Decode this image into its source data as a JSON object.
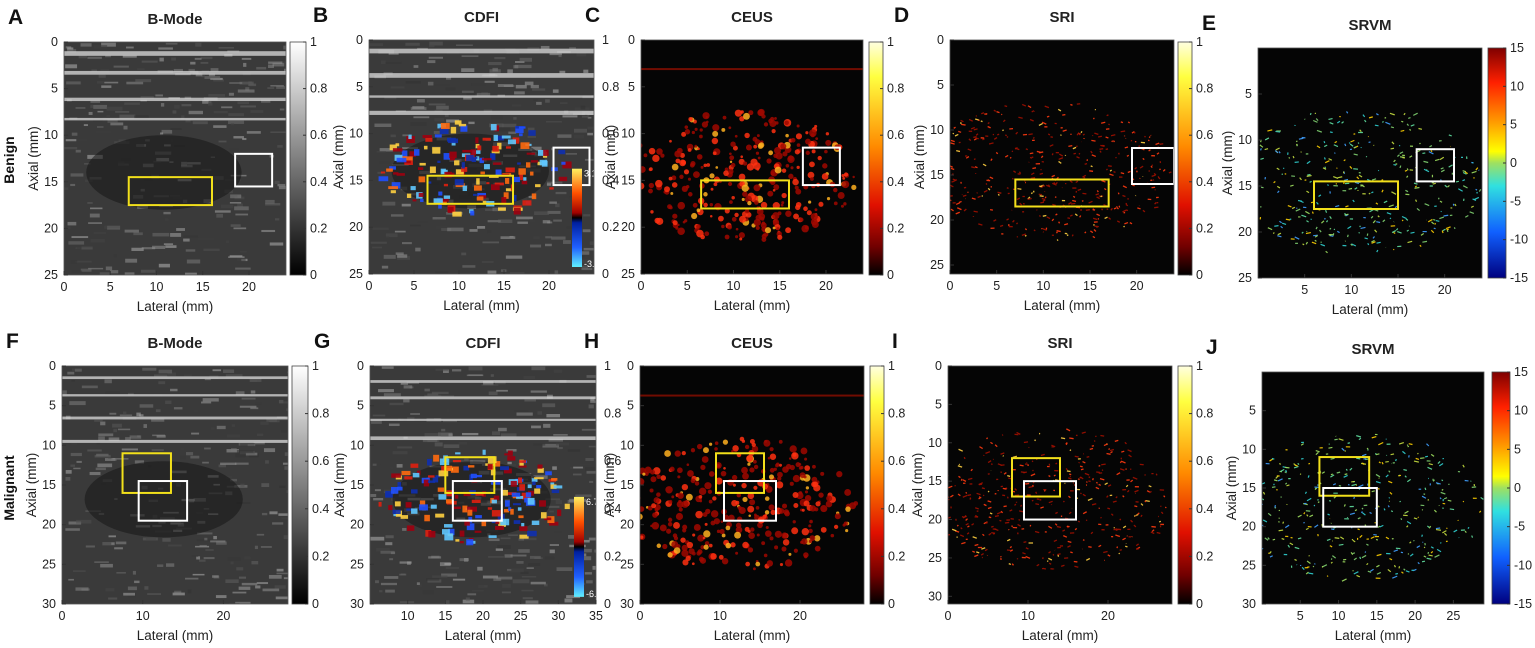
{
  "row_labels": [
    "Benign",
    "Malignant"
  ],
  "panels": [
    {
      "letter": "A",
      "title": "B-Mode",
      "kind": "bmode",
      "xticks": [
        "0",
        "5",
        "10",
        "15",
        "20"
      ],
      "yticks": [
        "0",
        "5",
        "10",
        "15",
        "20",
        "25"
      ],
      "xlabel": "Lateral (mm)",
      "ylabel": "Axial (mm)",
      "cbar": "gray",
      "cbar_ticks": [
        "1",
        "0.8",
        "0.6",
        "0.4",
        "0.2",
        "0"
      ],
      "yellow_box_mm": {
        "x": [
          7,
          16
        ],
        "y": [
          14.5,
          17.5
        ]
      },
      "white_box_mm": {
        "x": [
          18.5,
          22.5
        ],
        "y": [
          12,
          15.5
        ]
      }
    },
    {
      "letter": "B",
      "title": "CDFI",
      "kind": "cdfi",
      "xticks": [
        "0",
        "5",
        "10",
        "15",
        "20"
      ],
      "yticks": [
        "0",
        "5",
        "10",
        "15",
        "20",
        "25"
      ],
      "xlabel": "Lateral (mm)",
      "ylabel": "Axial (mm)",
      "cbar": "gray",
      "cbar_ticks": [
        "1",
        "0.8",
        "0.6",
        "0.4",
        "0.2",
        "0"
      ],
      "inset_scale": [
        "3.1",
        "-3.9"
      ],
      "yellow_box_mm": {
        "x": [
          6.5,
          16
        ],
        "y": [
          14.5,
          17.5
        ]
      },
      "white_box_mm": {
        "x": [
          20.5,
          24.5
        ],
        "y": [
          11.5,
          15.5
        ]
      }
    },
    {
      "letter": "C",
      "title": "CEUS",
      "kind": "ceus",
      "xticks": [
        "0",
        "5",
        "10",
        "15",
        "20"
      ],
      "yticks": [
        "0",
        "5",
        "10",
        "15",
        "20",
        "25"
      ],
      "xlabel": "Lateral (mm)",
      "ylabel": "Axial (mm)",
      "cbar": "hot",
      "cbar_ticks": [
        "1",
        "0.8",
        "0.6",
        "0.4",
        "0.2",
        "0"
      ],
      "yellow_box_mm": {
        "x": [
          6.5,
          16
        ],
        "y": [
          15,
          18
        ]
      },
      "white_box_mm": {
        "x": [
          17.5,
          21.5
        ],
        "y": [
          11.5,
          15.5
        ]
      }
    },
    {
      "letter": "D",
      "title": "SRI",
      "kind": "sri",
      "xticks": [
        "0",
        "5",
        "10",
        "15",
        "20"
      ],
      "yticks": [
        "0",
        "5",
        "10",
        "15",
        "20",
        "25"
      ],
      "xlabel": "Lateral (mm)",
      "ylabel": "Axial (mm)",
      "cbar": "hot",
      "cbar_ticks": [
        "1",
        "0.8",
        "0.6",
        "0.4",
        "0.2",
        "0"
      ],
      "yellow_box_mm": {
        "x": [
          7,
          17
        ],
        "y": [
          15.5,
          18.5
        ]
      },
      "white_box_mm": {
        "x": [
          19.5,
          24
        ],
        "y": [
          12,
          16
        ]
      }
    },
    {
      "letter": "E",
      "title": "SRVM",
      "kind": "srvm",
      "xticks": [
        "5",
        "10",
        "15",
        "20"
      ],
      "yticks": [
        "5",
        "10",
        "15",
        "20",
        "25"
      ],
      "xlabel": "Lateral (mm)",
      "ylabel": "Axial (mm)",
      "cbar": "jet",
      "cbar_ticks": [
        "15",
        "10",
        "5",
        "0",
        "-5",
        "-10",
        "-15"
      ],
      "yellow_box_mm": {
        "x": [
          6,
          15
        ],
        "y": [
          14.5,
          17.5
        ]
      },
      "white_box_mm": {
        "x": [
          17,
          21
        ],
        "y": [
          11,
          14.5
        ]
      }
    },
    {
      "letter": "F",
      "title": "B-Mode",
      "kind": "bmode",
      "xticks": [
        "0",
        "10",
        "20"
      ],
      "yticks": [
        "0",
        "5",
        "10",
        "15",
        "20",
        "25",
        "30"
      ],
      "xlabel": "Lateral (mm)",
      "ylabel": "Axial (mm)",
      "cbar": "gray",
      "cbar_ticks": [
        "1",
        "0.8",
        "0.6",
        "0.4",
        "0.2",
        "0"
      ],
      "yellow_box_mm": {
        "x": [
          7.5,
          13.5
        ],
        "y": [
          11,
          16
        ]
      },
      "white_box_mm": {
        "x": [
          9.5,
          15.5
        ],
        "y": [
          14.5,
          19.5
        ]
      }
    },
    {
      "letter": "G",
      "title": "CDFI",
      "kind": "cdfi",
      "xticks": [
        "10",
        "15",
        "20",
        "25",
        "30",
        "35"
      ],
      "yticks": [
        "0",
        "5",
        "10",
        "15",
        "20",
        "25",
        "30"
      ],
      "xlabel": "Lateral (mm)",
      "ylabel": "Axial (mm)",
      "cbar": "gray",
      "cbar_ticks": [
        "1",
        "0.8",
        "0.6",
        "0.4",
        "0.2",
        "0"
      ],
      "inset_scale": [
        "6.7",
        "-6.7"
      ],
      "yellow_box_mm": {
        "x": [
          15,
          21.5
        ],
        "y": [
          11.5,
          16
        ]
      },
      "white_box_mm": {
        "x": [
          16,
          22.5
        ],
        "y": [
          14.5,
          19.5
        ]
      }
    },
    {
      "letter": "H",
      "title": "CEUS",
      "kind": "ceus",
      "xticks": [
        "0",
        "10",
        "20"
      ],
      "yticks": [
        "0",
        "5",
        "10",
        "15",
        "20",
        "25",
        "30"
      ],
      "xlabel": "Lateral (mm)",
      "ylabel": "Axial (mm)",
      "cbar": "hot",
      "cbar_ticks": [
        "1",
        "0.8",
        "0.6",
        "0.4",
        "0.2",
        "0"
      ],
      "yellow_box_mm": {
        "x": [
          9.5,
          15.5
        ],
        "y": [
          11,
          16
        ]
      },
      "white_box_mm": {
        "x": [
          10.5,
          17
        ],
        "y": [
          14.5,
          19.5
        ]
      }
    },
    {
      "letter": "I",
      "title": "SRI",
      "kind": "sri",
      "xticks": [
        "0",
        "10",
        "20"
      ],
      "yticks": [
        "0",
        "5",
        "10",
        "15",
        "20",
        "25",
        "30"
      ],
      "xlabel": "Lateral (mm)",
      "ylabel": "Axial (mm)",
      "cbar": "hot",
      "cbar_ticks": [
        "1",
        "0.8",
        "0.6",
        "0.4",
        "0.2",
        "0"
      ],
      "yellow_box_mm": {
        "x": [
          8,
          14
        ],
        "y": [
          12,
          17
        ]
      },
      "white_box_mm": {
        "x": [
          9.5,
          16
        ],
        "y": [
          15,
          20
        ]
      }
    },
    {
      "letter": "J",
      "title": "SRVM",
      "kind": "srvm",
      "xticks": [
        "5",
        "10",
        "15",
        "20",
        "25"
      ],
      "yticks": [
        "5",
        "10",
        "15",
        "20",
        "25",
        "30"
      ],
      "xlabel": "Lateral (mm)",
      "ylabel": "Axial (mm)",
      "cbar": "jet",
      "cbar_ticks": [
        "15",
        "10",
        "5",
        "0",
        "-5",
        "-10",
        "-15"
      ],
      "yellow_box_mm": {
        "x": [
          7.5,
          14
        ],
        "y": [
          11,
          16
        ]
      },
      "white_box_mm": {
        "x": [
          8,
          15
        ],
        "y": [
          15,
          20
        ]
      }
    }
  ],
  "colors": {
    "roi_yellow": "#f2e01b",
    "roi_white": "#ffffff"
  }
}
